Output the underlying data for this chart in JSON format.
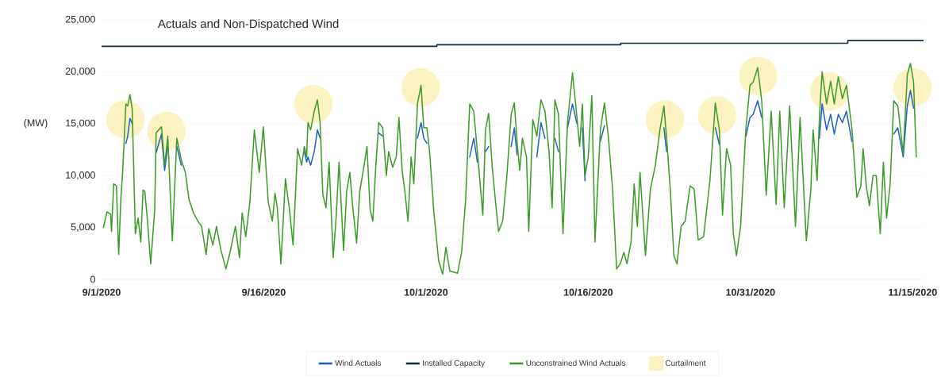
{
  "chart_data": {
    "type": "line",
    "title": "Actuals and Non-Dispatched Wind",
    "ylabel": "(MW)",
    "xlim": [
      "2020-09-01",
      "2020-11-16"
    ],
    "xticks": [
      {
        "value": "2020-09-01",
        "label": "9/1/2020"
      },
      {
        "value": "2020-09-16",
        "label": "9/16/2020"
      },
      {
        "value": "2020-10-01",
        "label": "10/1/2020"
      },
      {
        "value": "2020-10-16",
        "label": "10/16/2020"
      },
      {
        "value": "2020-10-31",
        "label": "10/31/2020"
      },
      {
        "value": "2020-11-15",
        "label": "11/15/2020"
      }
    ],
    "ylim": [
      0,
      25000
    ],
    "yticks": [
      0,
      {
        "value": 5000,
        "label": "5,000"
      },
      {
        "value": 10000,
        "label": "10,000"
      },
      {
        "value": 15000,
        "label": "15,000"
      },
      {
        "value": 20000,
        "label": "20,000"
      },
      {
        "value": 25000,
        "label": "25,000"
      }
    ],
    "grid": "y",
    "legend": "bottom",
    "x": [
      "2020-09-01T04:00",
      "2020-09-01T12:00",
      "2020-09-01T20:00",
      "2020-09-01T22:00",
      "2020-09-02T03:00",
      "2020-09-02T09:00",
      "2020-09-02T14:00",
      "2020-09-02T19:00",
      "2020-09-02T23:00",
      "2020-09-03T06:00",
      "2020-09-03T10:00",
      "2020-09-03T15:00",
      "2020-09-03T20:00",
      "2020-09-04T03:00",
      "2020-09-04T09:00",
      "2020-09-04T15:00",
      "2020-09-04T20:00",
      "2020-09-05T00:00",
      "2020-09-05T06:00",
      "2020-09-05T13:00",
      "2020-09-05T22:00",
      "2020-09-06T01:00",
      "2020-09-06T13:00",
      "2020-09-06T20:00",
      "2020-09-07T03:00",
      "2020-09-07T13:00",
      "2020-09-07T23:00",
      "2020-09-08T09:00",
      "2020-09-08T18:00",
      "2020-09-09T02:00",
      "2020-09-09T12:00",
      "2020-09-09T22:00",
      "2020-09-10T06:00",
      "2020-09-10T16:00",
      "2020-09-10T22:00",
      "2020-09-11T07:00",
      "2020-09-11T15:00",
      "2020-09-12T01:00",
      "2020-09-12T12:00",
      "2020-09-12T21:00",
      "2020-09-13T09:00",
      "2020-09-13T18:00",
      "2020-09-14T00:00",
      "2020-09-14T08:00",
      "2020-09-14T17:00",
      "2020-09-15T03:00",
      "2020-09-15T14:00",
      "2020-09-15T23:00",
      "2020-09-16T10:00",
      "2020-09-16T19:00",
      "2020-09-17T01:00",
      "2020-09-17T06:00",
      "2020-09-17T14:00",
      "2020-09-18T00:00",
      "2020-09-18T09:00",
      "2020-09-18T17:00",
      "2020-09-19T03:00",
      "2020-09-19T12:00",
      "2020-09-19T18:00",
      "2020-09-19T23:00",
      "2020-09-20T02:00",
      "2020-09-20T08:00",
      "2020-09-20T16:00",
      "2020-09-20T23:00",
      "2020-09-21T05:00",
      "2020-09-21T11:00",
      "2020-09-21T18:00",
      "2020-09-22T01:00",
      "2020-09-22T10:00",
      "2020-09-22T16:00",
      "2020-09-22T23:00",
      "2020-09-23T09:00",
      "2020-09-23T16:00",
      "2020-09-23T23:00",
      "2020-09-24T06:00",
      "2020-09-24T14:00",
      "2020-09-24T21:00",
      "2020-09-25T06:00",
      "2020-09-25T13:00",
      "2020-09-25T20:00",
      "2020-09-26T02:00",
      "2020-09-26T08:00",
      "2020-09-26T15:00",
      "2020-09-27T00:00",
      "2020-09-27T08:00",
      "2020-09-27T13:00",
      "2020-09-27T22:00",
      "2020-09-28T06:00",
      "2020-09-28T12:00",
      "2020-09-28T19:00",
      "2020-09-29T01:00",
      "2020-09-29T08:00",
      "2020-09-29T15:00",
      "2020-09-29T21:00",
      "2020-09-30T05:00",
      "2020-09-30T13:00",
      "2020-09-30T19:00",
      "2020-10-01T02:00",
      "2020-10-01T08:00",
      "2020-10-01T17:00",
      "2020-10-02T04:00",
      "2020-10-02T13:00",
      "2020-10-02T20:00",
      "2020-10-03T05:00",
      "2020-10-03T22:00",
      "2020-10-04T07:00",
      "2020-10-04T16:00",
      "2020-10-05T01:00",
      "2020-10-05T10:00",
      "2020-10-05T18:00",
      "2020-10-06T06:00",
      "2020-10-06T12:00",
      "2020-10-06T19:00",
      "2020-10-07T03:00",
      "2020-10-07T12:00",
      "2020-10-07T17:00",
      "2020-10-08T02:00",
      "2020-10-08T11:00",
      "2020-10-08T21:00",
      "2020-10-09T04:00",
      "2020-10-09T10:00",
      "2020-10-09T16:00",
      "2020-10-09T22:00",
      "2020-10-10T07:00",
      "2020-10-10T12:00",
      "2020-10-10T21:00",
      "2020-10-11T06:00",
      "2020-10-11T15:00",
      "2020-10-12T00:00",
      "2020-10-12T09:00",
      "2020-10-12T16:00",
      "2020-10-12T22:00",
      "2020-10-13T06:00",
      "2020-10-13T16:00",
      "2020-10-14T02:00",
      "2020-10-14T13:00",
      "2020-10-14T23:00",
      "2020-10-15T05:00",
      "2020-10-15T11:00",
      "2020-10-15T17:00",
      "2020-10-16T00:00",
      "2020-10-16T08:00",
      "2020-10-16T15:00",
      "2020-10-17T03:00",
      "2020-10-17T12:00",
      "2020-10-17T21:00",
      "2020-10-18T06:00",
      "2020-10-18T15:00",
      "2020-10-18T23:00",
      "2020-10-19T07:00",
      "2020-10-19T14:00",
      "2020-10-19T23:00",
      "2020-10-20T06:00",
      "2020-10-20T13:00",
      "2020-10-20T19:00",
      "2020-10-21T07:00",
      "2020-10-21T18:00",
      "2020-10-22T05:00",
      "2020-10-22T15:00",
      "2020-10-23T00:00",
      "2020-10-23T06:00",
      "2020-10-23T14:00",
      "2020-10-23T22:00",
      "2020-10-24T05:00",
      "2020-10-24T14:00",
      "2020-10-24T23:00",
      "2020-10-25T10:00",
      "2020-10-25T19:00",
      "2020-10-26T04:00",
      "2020-10-26T16:00",
      "2020-10-27T06:00",
      "2020-10-27T18:00",
      "2020-10-28T03:00",
      "2020-10-28T10:00",
      "2020-10-28T19:00",
      "2020-10-29T04:00",
      "2020-10-29T10:00",
      "2020-10-29T17:00",
      "2020-10-30T02:00",
      "2020-10-30T14:00",
      "2020-10-30T23:00",
      "2020-10-31T06:00",
      "2020-10-31T16:00",
      "2020-11-01T01:00",
      "2020-11-01T11:00",
      "2020-11-01T22:00",
      "2020-11-02T09:00",
      "2020-11-02T17:00",
      "2020-11-03T03:00",
      "2020-11-03T15:00",
      "2020-11-04T04:00",
      "2020-11-04T14:00",
      "2020-11-05T04:00",
      "2020-11-05T14:00",
      "2020-11-05T19:00",
      "2020-11-06T04:00",
      "2020-11-06T09:00",
      "2020-11-06T15:00",
      "2020-11-07T01:00",
      "2020-11-07T10:00",
      "2020-11-07T18:00",
      "2020-11-08T03:00",
      "2020-11-08T12:00",
      "2020-11-08T21:00",
      "2020-11-09T09:00",
      "2020-11-09T20:00",
      "2020-11-10T05:00",
      "2020-11-10T10:00",
      "2020-11-10T17:00",
      "2020-11-11T00:00",
      "2020-11-11T08:00",
      "2020-11-11T15:00",
      "2020-11-12T00:00",
      "2020-11-12T07:00",
      "2020-11-12T14:00",
      "2020-11-12T22:00",
      "2020-11-13T06:00",
      "2020-11-13T15:00",
      "2020-11-14T03:00",
      "2020-11-14T12:00",
      "2020-11-14T19:00",
      "2020-11-15T02:00",
      "2020-11-15T08:00"
    ],
    "series": [
      {
        "name": "Wind Actuals",
        "color": "#1f5fc4",
        "values": [
          null,
          null,
          null,
          null,
          null,
          null,
          null,
          null,
          null,
          13100,
          13800,
          15500,
          15000,
          null,
          null,
          null,
          null,
          null,
          null,
          null,
          null,
          12200,
          14000,
          10500,
          12800,
          null,
          12800,
          11000,
          null,
          null,
          null,
          null,
          null,
          null,
          null,
          null,
          null,
          null,
          null,
          null,
          null,
          null,
          null,
          null,
          null,
          null,
          null,
          null,
          null,
          null,
          null,
          null,
          null,
          null,
          null,
          null,
          null,
          null,
          12300,
          11300,
          11800,
          11000,
          12300,
          14400,
          13600,
          null,
          null,
          null,
          null,
          null,
          null,
          null,
          null,
          null,
          null,
          null,
          null,
          null,
          null,
          null,
          null,
          null,
          14100,
          13800,
          null,
          null,
          null,
          null,
          null,
          null,
          null,
          null,
          null,
          null,
          13600,
          15100,
          13600,
          13100,
          null,
          null,
          null,
          null,
          null,
          null,
          null,
          null,
          null,
          11800,
          13600,
          11300,
          null,
          12300,
          12800,
          null,
          null,
          null,
          null,
          null,
          12800,
          14600,
          12000,
          null,
          null,
          null,
          null,
          null,
          11800,
          15100,
          13600,
          null,
          null,
          13600,
          12300,
          null,
          14600,
          16900,
          15000,
          null,
          14600,
          9500,
          null,
          null,
          null,
          13300,
          14800,
          null,
          null,
          null,
          null,
          null,
          null,
          null,
          null,
          null,
          null,
          null,
          null,
          null,
          null,
          14600,
          12300,
          null,
          null,
          null,
          null,
          null,
          null,
          null,
          null,
          null,
          null,
          14600,
          13000,
          null,
          null,
          null,
          null,
          null,
          null,
          13800,
          15600,
          15900,
          17200,
          15600,
          null,
          null,
          null,
          null,
          null,
          null,
          null,
          null,
          null,
          null,
          null,
          null,
          13600,
          16900,
          14400,
          15900,
          14000,
          15900,
          15100,
          16200,
          13300,
          null,
          null,
          null,
          null,
          null,
          null,
          null,
          null,
          null,
          null,
          null,
          14000,
          14600,
          11800,
          16700,
          18200,
          16500,
          null
        ]
      },
      {
        "name": "Installed Capacity",
        "type": "step",
        "color": "#0e2c40",
        "x": [
          "2020-09-01",
          "2020-10-02",
          "2020-10-19",
          "2020-11-09",
          "2020-11-16"
        ],
        "values": [
          22450,
          22600,
          22750,
          23000,
          23000
        ]
      },
      {
        "name": "Unconstrained Wind Actuals",
        "color": "#3b9a27",
        "values": [
          5000,
          6500,
          6300,
          4600,
          9200,
          9000,
          2400,
          7900,
          10500,
          16900,
          16700,
          17800,
          16400,
          4400,
          5900,
          3600,
          8600,
          8500,
          5600,
          1500,
          6700,
          14100,
          14700,
          11000,
          13800,
          3700,
          13600,
          11500,
          10300,
          7700,
          6400,
          5600,
          5100,
          2400,
          4900,
          3300,
          5100,
          2800,
          1000,
          2600,
          5100,
          2100,
          6400,
          4100,
          7400,
          14400,
          10300,
          14700,
          7400,
          5600,
          8300,
          6900,
          1500,
          9700,
          6700,
          3300,
          12600,
          11000,
          12800,
          11800,
          15100,
          14400,
          16200,
          17300,
          15100,
          8200,
          6900,
          11300,
          2100,
          5600,
          11300,
          2800,
          8500,
          10300,
          6700,
          3500,
          8500,
          10800,
          12800,
          6700,
          5600,
          10500,
          15100,
          14600,
          10000,
          12300,
          10800,
          11800,
          15600,
          10500,
          8500,
          5600,
          11800,
          9200,
          16900,
          18700,
          14600,
          14600,
          12300,
          6700,
          1800,
          500,
          3100,
          800,
          600,
          2600,
          7700,
          16900,
          16200,
          12300,
          6200,
          14400,
          16000,
          10800,
          6700,
          4600,
          5600,
          9700,
          15900,
          17000,
          13300,
          10500,
          13600,
          11800,
          4600,
          15400,
          13800,
          17300,
          16200,
          12300,
          6900,
          17300,
          15900,
          4400,
          15100,
          19900,
          15600,
          12800,
          16900,
          10000,
          11800,
          17700,
          3600,
          14400,
          17000,
          13600,
          8700,
          1000,
          1500,
          2600,
          1500,
          3600,
          9200,
          5100,
          10300,
          2300,
          8700,
          11000,
          14400,
          16700,
          13600,
          8700,
          2300,
          1500,
          5100,
          5600,
          9000,
          8700,
          3800,
          4100,
          9500,
          17000,
          14400,
          6200,
          12600,
          11000,
          4400,
          2300,
          5100,
          14600,
          18700,
          19000,
          20400,
          17200,
          8100,
          16200,
          7200,
          16200,
          6900,
          16700,
          5100,
          15600,
          3700,
          8700,
          14400,
          9500,
          15600,
          20000,
          16900,
          19100,
          16900,
          19500,
          17400,
          18700,
          14600,
          7900,
          9000,
          12600,
          9000,
          7100,
          10000,
          10000,
          4400,
          11300,
          5900,
          9200,
          17200,
          16700,
          12100,
          19700,
          20800,
          19000,
          11800
        ]
      },
      {
        "name": "Curtailment",
        "type": "scatter",
        "color": "#fcf2c2",
        "x": [
          "2020-09-03T05:00",
          "2020-09-07T00:00",
          "2020-09-20T14:00",
          "2020-09-30T12:00",
          "2020-10-23T02:00",
          "2020-10-27T22:00",
          "2020-10-31T17:00",
          "2020-11-07T07:00",
          "2020-11-15T00:00"
        ],
        "values": [
          15400,
          14300,
          16900,
          18500,
          15400,
          15800,
          19600,
          18100,
          18500
        ]
      }
    ]
  }
}
